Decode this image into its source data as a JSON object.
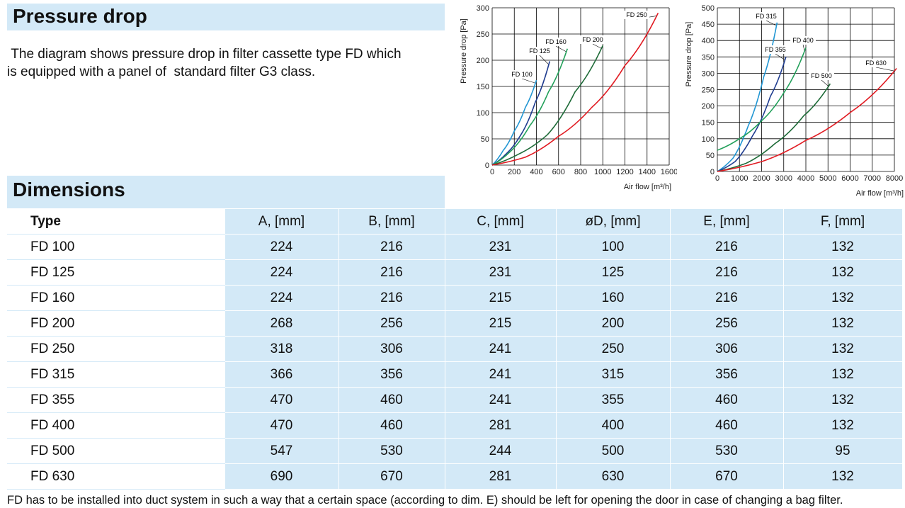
{
  "sections": {
    "pressure_drop_title": "Pressure drop",
    "intro_text": " The diagram shows pressure drop in filter cassette type FD which\nis equipped with a panel of  standard filter G3 class.",
    "dimensions_title": "Dimensions",
    "footnote": "FD has to be installed into duct system in such a way that a certain space (according to dim. E) should be left for opening the door in case of changing a bag filter."
  },
  "table": {
    "headers": [
      "Type",
      "A, [mm]",
      "B, [mm]",
      "C, [mm]",
      "øD, [mm]",
      "E, [mm]",
      "F, [mm]"
    ],
    "rows": [
      [
        "FD 100",
        "224",
        "216",
        "231",
        "100",
        "216",
        "132"
      ],
      [
        "FD 125",
        "224",
        "216",
        "231",
        "125",
        "216",
        "132"
      ],
      [
        "FD 160",
        "224",
        "216",
        "215",
        "160",
        "216",
        "132"
      ],
      [
        "FD 200",
        "268",
        "256",
        "215",
        "200",
        "256",
        "132"
      ],
      [
        "FD 250",
        "318",
        "306",
        "241",
        "250",
        "306",
        "132"
      ],
      [
        "FD 315",
        "366",
        "356",
        "241",
        "315",
        "356",
        "132"
      ],
      [
        "FD 355",
        "470",
        "460",
        "241",
        "355",
        "460",
        "132"
      ],
      [
        "FD 400",
        "470",
        "460",
        "281",
        "400",
        "460",
        "132"
      ],
      [
        "FD 500",
        "547",
        "530",
        "244",
        "500",
        "530",
        "95"
      ],
      [
        "FD 630",
        "690",
        "670",
        "281",
        "630",
        "670",
        "132"
      ]
    ]
  },
  "chart_data": [
    {
      "type": "line",
      "xlabel": "Air flow [m³/h]",
      "ylabel": "Pressure drop  [Pa]",
      "xlim": [
        0,
        1600
      ],
      "ylim": [
        0,
        300
      ],
      "xticks": [
        0,
        200,
        400,
        600,
        800,
        1000,
        1200,
        1400,
        1600
      ],
      "yticks": [
        0,
        50,
        100,
        150,
        200,
        250,
        300
      ],
      "grid": true,
      "series": [
        {
          "name": "FD 100",
          "color": "#2196d3",
          "x": [
            0,
            100,
            200,
            300,
            400
          ],
          "y": [
            0,
            28,
            65,
            110,
            162
          ]
        },
        {
          "name": "FD 125",
          "color": "#1f3c8f",
          "x": [
            0,
            130,
            260,
            390,
            520
          ],
          "y": [
            0,
            22,
            58,
            120,
            198
          ]
        },
        {
          "name": "FD 160",
          "color": "#22a05a",
          "x": [
            0,
            170,
            340,
            510,
            680
          ],
          "y": [
            0,
            27,
            75,
            140,
            222
          ]
        },
        {
          "name": "FD 200",
          "color": "#1e6b38",
          "x": [
            0,
            250,
            500,
            750,
            1000
          ],
          "y": [
            0,
            22,
            58,
            140,
            228
          ]
        },
        {
          "name": "FD 250",
          "color": "#e11b22",
          "x": [
            0,
            300,
            600,
            900,
            1200,
            1500
          ],
          "y": [
            0,
            15,
            55,
            110,
            190,
            290
          ]
        }
      ],
      "annotations": [
        "FD 100",
        "FD 125",
        "FD 160",
        "FD 200",
        "FD 250"
      ]
    },
    {
      "type": "line",
      "xlabel": "Air flow [m³/h]",
      "ylabel": "Pressure drop  [Pa]",
      "xlim": [
        0,
        8000
      ],
      "ylim": [
        0,
        500
      ],
      "xticks": [
        0,
        1000,
        2000,
        3000,
        4000,
        5000,
        6000,
        7000,
        8000
      ],
      "yticks": [
        0,
        50,
        100,
        150,
        200,
        250,
        300,
        350,
        400,
        450,
        500
      ],
      "grid": true,
      "series": [
        {
          "name": "FD 315",
          "color": "#2196d3",
          "x": [
            0,
            700,
            1400,
            2100,
            2700
          ],
          "y": [
            0,
            40,
            140,
            290,
            455
          ]
        },
        {
          "name": "FD 355",
          "color": "#1f3c8f",
          "x": [
            0,
            800,
            1600,
            2400,
            3100
          ],
          "y": [
            0,
            30,
            110,
            230,
            350
          ]
        },
        {
          "name": "FD 400",
          "color": "#22a05a",
          "x": [
            0,
            1000,
            2000,
            3000,
            4000
          ],
          "y": [
            65,
            100,
            155,
            240,
            378
          ]
        },
        {
          "name": "FD 500",
          "color": "#1e6b38",
          "x": [
            0,
            1300,
            2600,
            3900,
            5100
          ],
          "y": [
            0,
            25,
            85,
            170,
            268
          ]
        },
        {
          "name": "FD 630",
          "color": "#e11b22",
          "x": [
            0,
            2000,
            4000,
            6000,
            8100
          ],
          "y": [
            0,
            30,
            95,
            180,
            315
          ]
        }
      ],
      "annotations": [
        "FD 315",
        "FD 355",
        "FD 400",
        "FD 500",
        "FD 630"
      ]
    }
  ]
}
